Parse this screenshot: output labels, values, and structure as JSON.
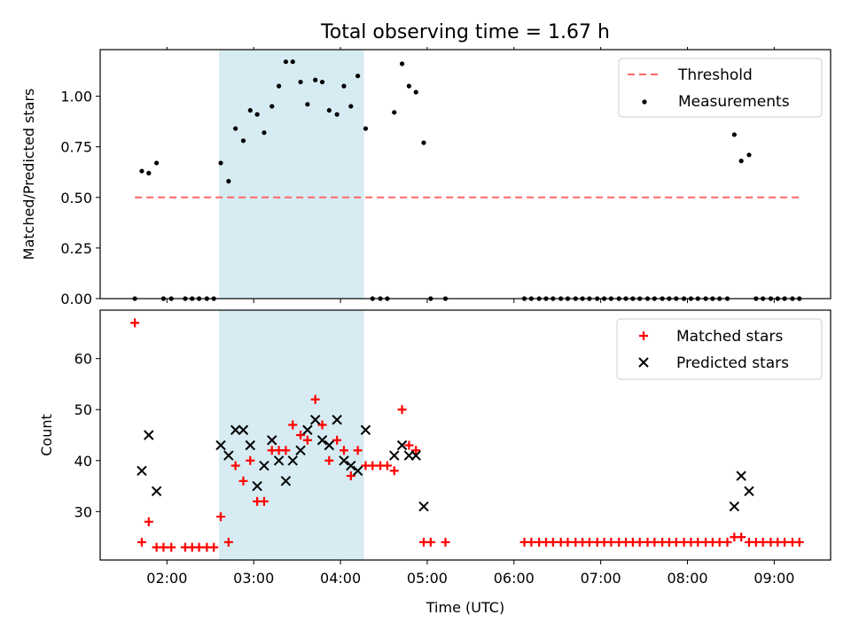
{
  "chart_data": {
    "title": "Total observing time = 1.67 h",
    "xlabel": "Time (UTC)",
    "x_unit": "hours UTC",
    "x_ticks": [
      {
        "value": 2,
        "label": "02:00"
      },
      {
        "value": 3,
        "label": "03:00"
      },
      {
        "value": 4,
        "label": "04:00"
      },
      {
        "value": 5,
        "label": "05:00"
      },
      {
        "value": 6,
        "label": "06:00"
      },
      {
        "value": 7,
        "label": "07:00"
      },
      {
        "value": 8,
        "label": "08:00"
      },
      {
        "value": 9,
        "label": "09:00"
      }
    ],
    "xlim": [
      1.23,
      9.65
    ],
    "highlight_span": [
      2.6,
      4.27
    ],
    "panels": [
      {
        "type": "scatter",
        "ylabel": "Matched/Predicted stars",
        "ylim": [
          0,
          1.23
        ],
        "y_ticks": [
          "0.00",
          "0.25",
          "0.50",
          "0.75",
          "1.00"
        ],
        "legend_position": "top-right",
        "threshold": {
          "name": "Threshold",
          "value": 0.5,
          "x_range": [
            1.63,
            9.3
          ],
          "color": "#ff6666"
        },
        "measurements": {
          "name": "Measurements",
          "color": "#000000",
          "points": [
            [
              1.63,
              0
            ],
            [
              1.71,
              0.63
            ],
            [
              1.79,
              0.62
            ],
            [
              1.88,
              0.67
            ],
            [
              1.96,
              0
            ],
            [
              2.05,
              0
            ],
            [
              2.21,
              0
            ],
            [
              2.29,
              0
            ],
            [
              2.37,
              0
            ],
            [
              2.46,
              0
            ],
            [
              2.54,
              0
            ],
            [
              2.62,
              0.67
            ],
            [
              2.71,
              0.58
            ],
            [
              2.79,
              0.84
            ],
            [
              2.88,
              0.78
            ],
            [
              2.96,
              0.93
            ],
            [
              3.04,
              0.91
            ],
            [
              3.12,
              0.82
            ],
            [
              3.21,
              0.95
            ],
            [
              3.29,
              1.05
            ],
            [
              3.37,
              1.17
            ],
            [
              3.45,
              1.17
            ],
            [
              3.54,
              1.07
            ],
            [
              3.62,
              0.96
            ],
            [
              3.71,
              1.08
            ],
            [
              3.79,
              1.07
            ],
            [
              3.87,
              0.93
            ],
            [
              3.96,
              0.91
            ],
            [
              4.04,
              1.05
            ],
            [
              4.12,
              0.95
            ],
            [
              4.2,
              1.1
            ],
            [
              4.29,
              0.84
            ],
            [
              4.37,
              0
            ],
            [
              4.46,
              0
            ],
            [
              4.54,
              0
            ],
            [
              4.62,
              0.92
            ],
            [
              4.71,
              1.16
            ],
            [
              4.79,
              1.05
            ],
            [
              4.87,
              1.02
            ],
            [
              4.96,
              0.77
            ],
            [
              5.04,
              0
            ],
            [
              5.21,
              0
            ],
            [
              6.12,
              0
            ],
            [
              6.2,
              0
            ],
            [
              6.29,
              0
            ],
            [
              6.37,
              0
            ],
            [
              6.45,
              0
            ],
            [
              6.54,
              0
            ],
            [
              6.62,
              0
            ],
            [
              6.71,
              0
            ],
            [
              6.79,
              0
            ],
            [
              6.87,
              0
            ],
            [
              6.96,
              0
            ],
            [
              7.04,
              0
            ],
            [
              7.12,
              0
            ],
            [
              7.21,
              0
            ],
            [
              7.29,
              0
            ],
            [
              7.37,
              0
            ],
            [
              7.45,
              0
            ],
            [
              7.54,
              0
            ],
            [
              7.62,
              0
            ],
            [
              7.71,
              0
            ],
            [
              7.79,
              0
            ],
            [
              7.87,
              0
            ],
            [
              7.96,
              0
            ],
            [
              8.04,
              0
            ],
            [
              8.12,
              0
            ],
            [
              8.21,
              0
            ],
            [
              8.29,
              0
            ],
            [
              8.37,
              0
            ],
            [
              8.46,
              0
            ],
            [
              8.54,
              0.81
            ],
            [
              8.62,
              0.68
            ],
            [
              8.71,
              0.71
            ],
            [
              8.79,
              0
            ],
            [
              8.87,
              0
            ],
            [
              8.96,
              0
            ],
            [
              9.04,
              0
            ],
            [
              9.12,
              0
            ],
            [
              9.21,
              0
            ],
            [
              9.29,
              0
            ]
          ]
        }
      },
      {
        "type": "scatter",
        "ylabel": "Count",
        "ylim": [
          20.5,
          69.5
        ],
        "y_ticks": [
          "30",
          "40",
          "50",
          "60"
        ],
        "legend_position": "top-right",
        "series": [
          {
            "name": "Matched stars",
            "marker": "+",
            "color": "#ff0000",
            "points": [
              [
                1.63,
                67
              ],
              [
                1.71,
                24
              ],
              [
                1.79,
                28
              ],
              [
                1.88,
                23
              ],
              [
                1.96,
                23
              ],
              [
                2.05,
                23
              ],
              [
                2.21,
                23
              ],
              [
                2.29,
                23
              ],
              [
                2.37,
                23
              ],
              [
                2.46,
                23
              ],
              [
                2.54,
                23
              ],
              [
                2.62,
                29
              ],
              [
                2.71,
                24
              ],
              [
                2.79,
                39
              ],
              [
                2.88,
                36
              ],
              [
                2.96,
                40
              ],
              [
                3.04,
                32
              ],
              [
                3.12,
                32
              ],
              [
                3.21,
                42
              ],
              [
                3.29,
                42
              ],
              [
                3.37,
                42
              ],
              [
                3.45,
                47
              ],
              [
                3.54,
                45
              ],
              [
                3.62,
                44
              ],
              [
                3.71,
                52
              ],
              [
                3.79,
                47
              ],
              [
                3.87,
                40
              ],
              [
                3.96,
                44
              ],
              [
                4.04,
                42
              ],
              [
                4.12,
                37
              ],
              [
                4.2,
                42
              ],
              [
                4.29,
                39
              ],
              [
                4.37,
                39
              ],
              [
                4.46,
                39
              ],
              [
                4.54,
                39
              ],
              [
                4.62,
                38
              ],
              [
                4.71,
                50
              ],
              [
                4.79,
                43
              ],
              [
                4.87,
                42
              ],
              [
                4.96,
                24
              ],
              [
                5.04,
                24
              ],
              [
                5.21,
                24
              ],
              [
                6.12,
                24
              ],
              [
                6.2,
                24
              ],
              [
                6.29,
                24
              ],
              [
                6.37,
                24
              ],
              [
                6.45,
                24
              ],
              [
                6.54,
                24
              ],
              [
                6.62,
                24
              ],
              [
                6.71,
                24
              ],
              [
                6.79,
                24
              ],
              [
                6.87,
                24
              ],
              [
                6.96,
                24
              ],
              [
                7.04,
                24
              ],
              [
                7.12,
                24
              ],
              [
                7.21,
                24
              ],
              [
                7.29,
                24
              ],
              [
                7.37,
                24
              ],
              [
                7.45,
                24
              ],
              [
                7.54,
                24
              ],
              [
                7.62,
                24
              ],
              [
                7.71,
                24
              ],
              [
                7.79,
                24
              ],
              [
                7.87,
                24
              ],
              [
                7.96,
                24
              ],
              [
                8.04,
                24
              ],
              [
                8.12,
                24
              ],
              [
                8.21,
                24
              ],
              [
                8.29,
                24
              ],
              [
                8.37,
                24
              ],
              [
                8.46,
                24
              ],
              [
                8.54,
                25
              ],
              [
                8.62,
                25
              ],
              [
                8.71,
                24
              ],
              [
                8.79,
                24
              ],
              [
                8.87,
                24
              ],
              [
                8.96,
                24
              ],
              [
                9.04,
                24
              ],
              [
                9.12,
                24
              ],
              [
                9.21,
                24
              ],
              [
                9.29,
                24
              ]
            ]
          },
          {
            "name": "Predicted stars",
            "marker": "x",
            "color": "#000000",
            "points": [
              [
                1.71,
                38
              ],
              [
                1.79,
                45
              ],
              [
                1.88,
                34
              ],
              [
                2.62,
                43
              ],
              [
                2.71,
                41
              ],
              [
                2.79,
                46
              ],
              [
                2.88,
                46
              ],
              [
                2.96,
                43
              ],
              [
                3.04,
                35
              ],
              [
                3.12,
                39
              ],
              [
                3.21,
                44
              ],
              [
                3.29,
                40
              ],
              [
                3.37,
                36
              ],
              [
                3.45,
                40
              ],
              [
                3.54,
                42
              ],
              [
                3.62,
                46
              ],
              [
                3.71,
                48
              ],
              [
                3.79,
                44
              ],
              [
                3.87,
                43
              ],
              [
                3.96,
                48
              ],
              [
                4.04,
                40
              ],
              [
                4.12,
                39
              ],
              [
                4.2,
                38
              ],
              [
                4.29,
                46
              ],
              [
                4.62,
                41
              ],
              [
                4.71,
                43
              ],
              [
                4.79,
                41
              ],
              [
                4.87,
                41
              ],
              [
                4.96,
                31
              ],
              [
                8.54,
                31
              ],
              [
                8.62,
                37
              ],
              [
                8.71,
                34
              ]
            ]
          }
        ]
      }
    ]
  }
}
